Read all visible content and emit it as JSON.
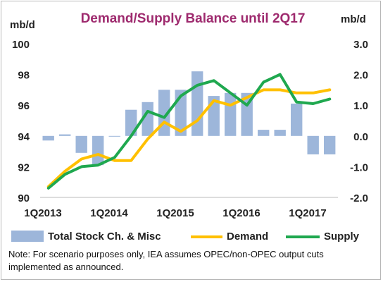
{
  "note": "Note: For scenario purposes only, IEA assumes OPEC/non-OPEC output cuts implemented as announced.",
  "chart_data": {
    "type": "bar+line",
    "title": "Demand/Supply Balance until 2Q17",
    "left_axis": {
      "label": "mb/d",
      "ylim": [
        90,
        100
      ],
      "ticks": [
        "90",
        "92",
        "94",
        "96",
        "98",
        "100"
      ]
    },
    "right_axis": {
      "label": "mb/d",
      "ylim": [
        -2.0,
        3.0
      ],
      "ticks": [
        "-2.0",
        "-1.0",
        "0.0",
        "1.0",
        "2.0",
        "3.0"
      ]
    },
    "x_ticks": [
      {
        "quarter_index": 0,
        "label": "1Q2013"
      },
      {
        "quarter_index": 4,
        "label": "1Q2014"
      },
      {
        "quarter_index": 8,
        "label": "1Q2015"
      },
      {
        "quarter_index": 12,
        "label": "1Q2016"
      },
      {
        "quarter_index": 16,
        "label": "1Q2017"
      }
    ],
    "quarters": [
      "1Q2013",
      "2Q2013",
      "3Q2013",
      "4Q2013",
      "1Q2014",
      "2Q2014",
      "3Q2014",
      "4Q2014",
      "1Q2015",
      "2Q2015",
      "3Q2015",
      "4Q2015",
      "1Q2016",
      "2Q2016",
      "3Q2016",
      "4Q2016",
      "1Q2017",
      "2Q2017"
    ],
    "grid": false,
    "legend_position": "bottom",
    "series": [
      {
        "name": "Total Stock Ch. & Misc",
        "type": "bar",
        "axis": "right",
        "color": "#9db6da",
        "values": [
          -0.15,
          0.05,
          -0.55,
          -0.95,
          0.0,
          0.85,
          1.1,
          1.5,
          1.5,
          2.1,
          1.3,
          1.4,
          1.4,
          0.2,
          0.2,
          1.05,
          -0.6,
          -0.6
        ]
      },
      {
        "name": "Demand",
        "type": "line",
        "axis": "left",
        "color": "#ffc000",
        "values": [
          90.7,
          91.7,
          92.5,
          92.8,
          92.4,
          92.4,
          93.8,
          94.9,
          94.3,
          95.0,
          96.3,
          96.0,
          96.5,
          97.0,
          97.0,
          96.8,
          96.8,
          97.0
        ]
      },
      {
        "name": "Supply",
        "type": "line",
        "axis": "left",
        "color": "#1fa84f",
        "values": [
          90.6,
          91.5,
          92.0,
          92.1,
          92.6,
          94.0,
          95.6,
          95.2,
          96.6,
          97.3,
          97.6,
          96.8,
          96.0,
          97.5,
          98.0,
          96.2,
          96.1,
          96.4
        ]
      }
    ]
  }
}
